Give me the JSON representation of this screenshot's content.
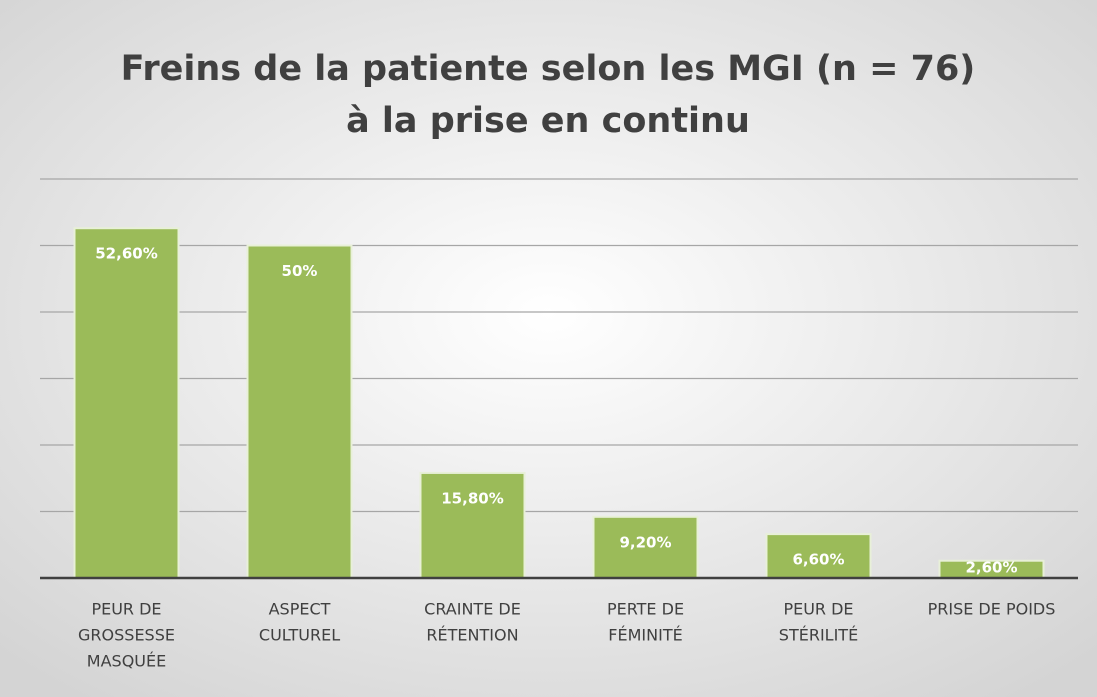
{
  "chart_data": {
    "type": "bar",
    "title": [
      "Freins de la patiente selon les MGI (n = 76)",
      "à la prise en continu"
    ],
    "categories": [
      [
        "PEUR DE",
        "GROSSESSE",
        "MASQUÉE"
      ],
      [
        "ASPECT",
        "CULTUREL"
      ],
      [
        "CRAINTE DE",
        "RÉTENTION"
      ],
      [
        "PERTE DE",
        "FÉMINITÉ"
      ],
      [
        "PEUR DE",
        "STÉRILITÉ"
      ],
      [
        "PRISE DE POIDS"
      ]
    ],
    "values": [
      52.6,
      50,
      15.8,
      9.2,
      6.6,
      2.6
    ],
    "value_labels": [
      "52,60%",
      "50%",
      "15,80%",
      "9,20%",
      "6,60%",
      "2,60%"
    ],
    "color": "#9bbb59",
    "ylim": [
      0,
      60
    ],
    "yticks": [
      0,
      10,
      20,
      30,
      40,
      50,
      60
    ],
    "grid": true
  }
}
